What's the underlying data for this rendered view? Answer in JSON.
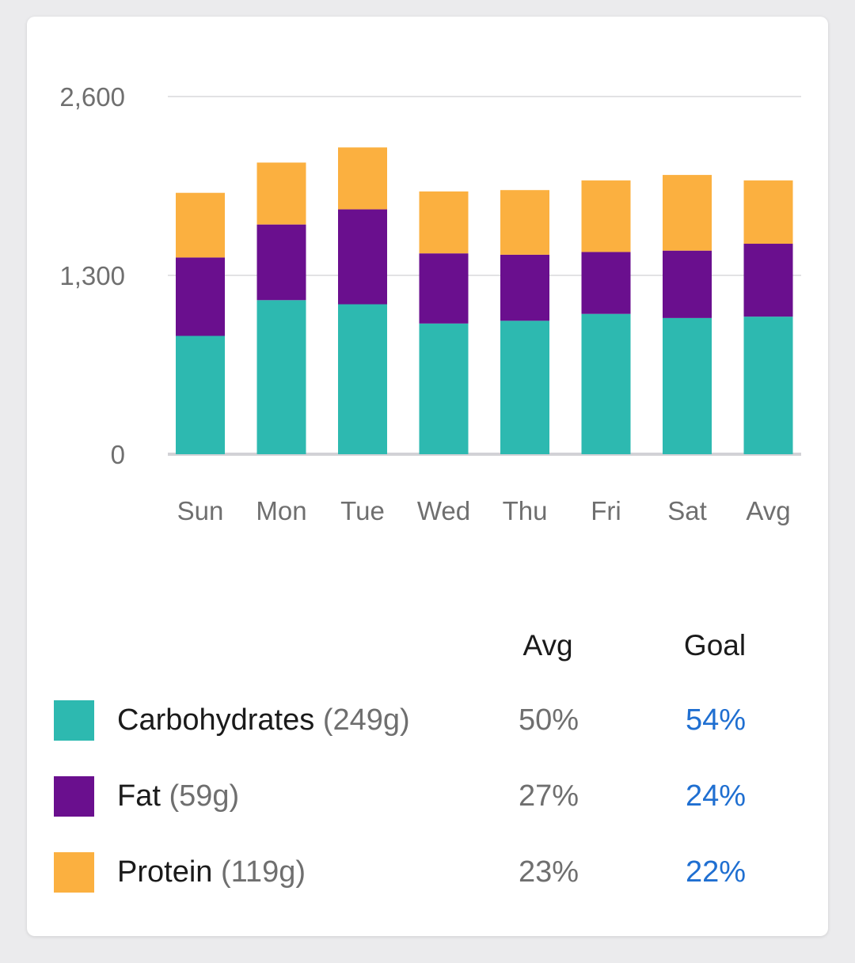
{
  "chart_data": {
    "type": "bar",
    "stacked": true,
    "categories": [
      "Sun",
      "Mon",
      "Tue",
      "Wed",
      "Thu",
      "Fri",
      "Sat",
      "Avg"
    ],
    "series": [
      {
        "name": "Carbohydrates",
        "color": "#2db9b0",
        "values": [
          860,
          1120,
          1090,
          950,
          970,
          1020,
          990,
          1000
        ]
      },
      {
        "name": "Fat",
        "color": "#6a0f8e",
        "values": [
          570,
          550,
          690,
          510,
          480,
          450,
          490,
          530
        ]
      },
      {
        "name": "Protein",
        "color": "#fbb040",
        "values": [
          470,
          450,
          450,
          450,
          470,
          520,
          550,
          460
        ]
      }
    ],
    "yticks": [
      0,
      1300,
      2600
    ],
    "ytick_labels": [
      "0",
      "1,300",
      "2,600"
    ],
    "ylim": [
      0,
      2600
    ],
    "grid": true,
    "title": "",
    "xlabel": "",
    "ylabel": ""
  },
  "legend": {
    "avg_header": "Avg",
    "goal_header": "Goal",
    "rows": [
      {
        "name": "Carbohydrates",
        "grams": "(249g)",
        "avg": "50%",
        "goal": "54%",
        "color": "#2db9b0"
      },
      {
        "name": "Fat",
        "grams": "(59g)",
        "avg": "27%",
        "goal": "24%",
        "color": "#6a0f8e"
      },
      {
        "name": "Protein",
        "grams": "(119g)",
        "avg": "23%",
        "goal": "22%",
        "color": "#fbb040"
      }
    ]
  }
}
